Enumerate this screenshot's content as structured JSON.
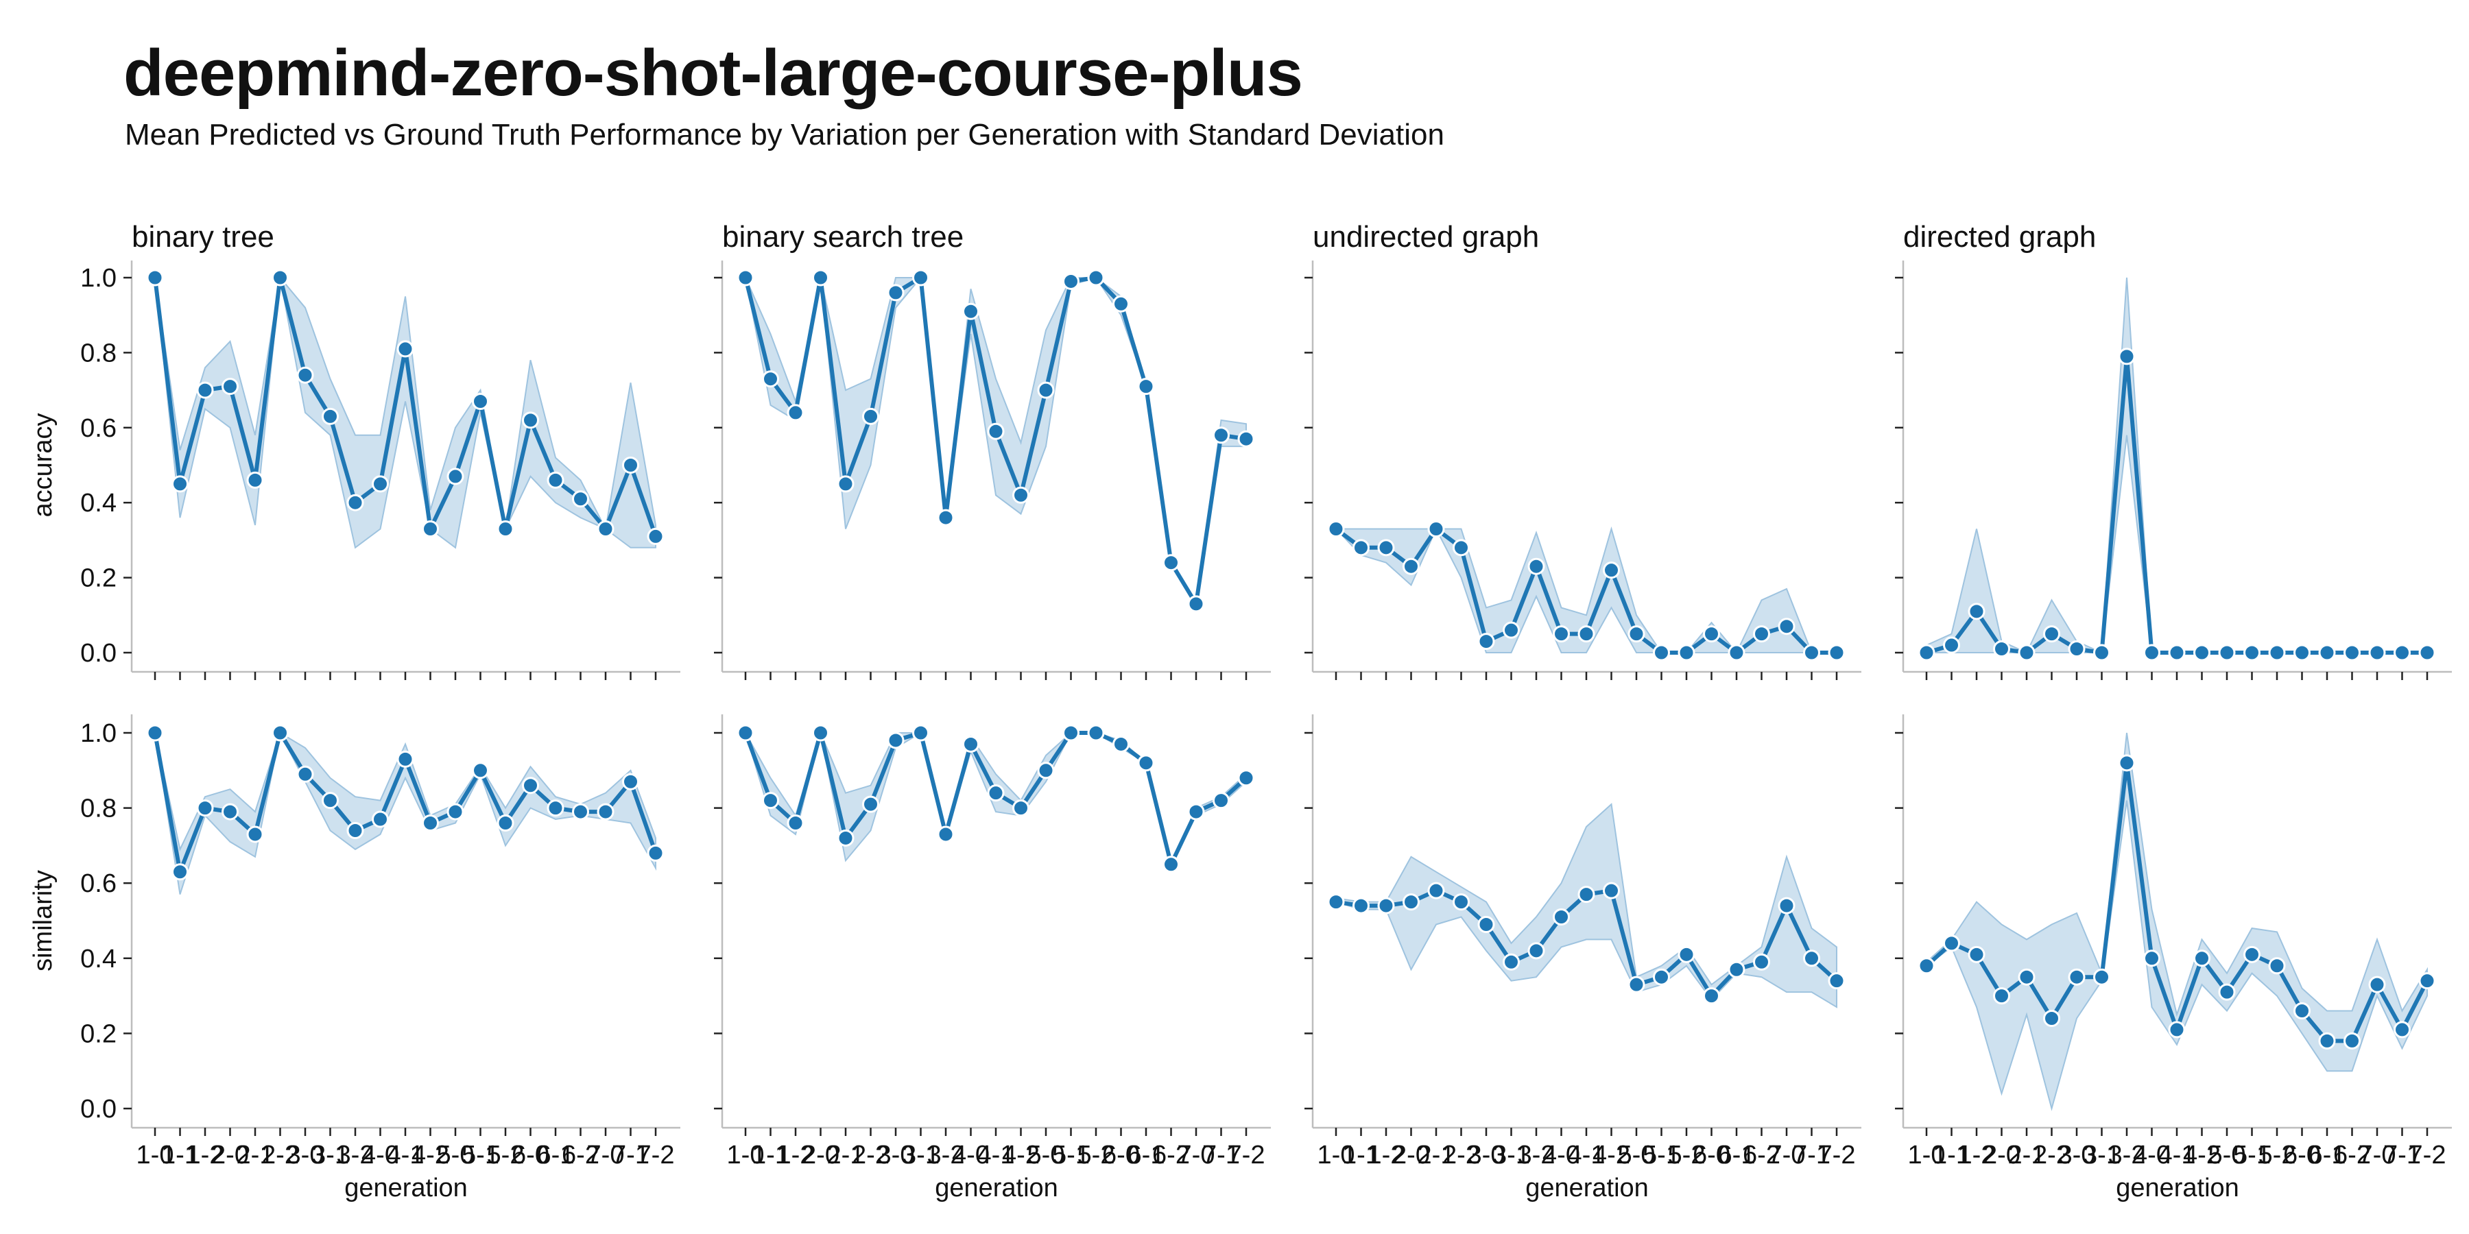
{
  "title": "deepmind-zero-shot-large-course-plus",
  "subtitle": "Mean Predicted vs Ground Truth Performance by Variation per Generation with Standard Deviation",
  "colors": {
    "line": "#1f77b4",
    "band": "#9ec3df",
    "marker_edge": "#ffffff",
    "axis": "#bdbdbd"
  },
  "chart_data": {
    "type": "line",
    "layout": "facet-grid 2x4",
    "columns": [
      "binary tree",
      "binary search tree",
      "undirected graph",
      "directed graph"
    ],
    "rows": [
      "accuracy",
      "similarity"
    ],
    "xlabel": "generation",
    "x": [
      "1-0",
      "1-1",
      "1-2",
      "2-0",
      "2-1",
      "2-2",
      "3-0",
      "3-1",
      "3-2",
      "4-0",
      "4-1",
      "4-2",
      "5-0",
      "5-1",
      "5-2",
      "6-0",
      "6-1",
      "6-2",
      "7-0",
      "7-1",
      "7-2"
    ],
    "ylim": [
      0,
      1
    ],
    "yticks": [
      0.0,
      0.2,
      0.4,
      0.6,
      0.8,
      1.0
    ],
    "ytick_labels": [
      "0.0",
      "0.2",
      "0.4",
      "0.6",
      "0.8",
      "1.0"
    ],
    "shared_y": true,
    "grid": false,
    "series": [
      {
        "row": "accuracy",
        "column": "binary tree",
        "values": [
          1.0,
          0.45,
          0.7,
          0.71,
          0.46,
          1.0,
          0.74,
          0.63,
          0.4,
          0.45,
          0.81,
          0.33,
          0.47,
          0.67,
          0.33,
          0.62,
          0.46,
          0.41,
          0.33,
          0.5,
          0.31
        ],
        "lower": [
          1.0,
          0.36,
          0.65,
          0.6,
          0.34,
          1.0,
          0.64,
          0.58,
          0.28,
          0.33,
          0.67,
          0.33,
          0.28,
          0.64,
          0.33,
          0.47,
          0.4,
          0.36,
          0.33,
          0.28,
          0.28
        ],
        "upper": [
          1.0,
          0.54,
          0.76,
          0.83,
          0.58,
          1.0,
          0.92,
          0.73,
          0.58,
          0.58,
          0.95,
          0.38,
          0.6,
          0.7,
          0.33,
          0.78,
          0.52,
          0.46,
          0.33,
          0.72,
          0.34
        ]
      },
      {
        "row": "accuracy",
        "column": "binary search tree",
        "values": [
          1.0,
          0.73,
          0.64,
          1.0,
          0.45,
          0.63,
          0.96,
          1.0,
          0.36,
          0.91,
          0.59,
          0.42,
          0.7,
          0.99,
          1.0,
          0.93,
          0.71,
          0.24,
          0.13,
          0.58,
          0.57
        ],
        "lower": [
          1.0,
          0.66,
          0.62,
          1.0,
          0.33,
          0.5,
          0.92,
          1.0,
          0.36,
          0.85,
          0.42,
          0.37,
          0.55,
          0.98,
          1.0,
          0.9,
          0.71,
          0.24,
          0.13,
          0.55,
          0.55
        ],
        "upper": [
          1.0,
          0.85,
          0.67,
          1.0,
          0.7,
          0.73,
          1.0,
          1.0,
          0.36,
          0.97,
          0.73,
          0.56,
          0.86,
          1.0,
          1.0,
          0.95,
          0.71,
          0.24,
          0.13,
          0.62,
          0.61
        ]
      },
      {
        "row": "accuracy",
        "column": "undirected graph",
        "values": [
          0.33,
          0.28,
          0.28,
          0.23,
          0.33,
          0.28,
          0.03,
          0.06,
          0.23,
          0.05,
          0.05,
          0.22,
          0.05,
          0.0,
          0.0,
          0.05,
          0.0,
          0.05,
          0.07,
          0.0,
          0.0
        ],
        "lower": [
          0.33,
          0.26,
          0.24,
          0.18,
          0.33,
          0.2,
          0.0,
          0.0,
          0.15,
          0.0,
          0.0,
          0.12,
          0.0,
          0.0,
          0.0,
          0.0,
          0.0,
          0.0,
          0.0,
          0.0,
          0.0
        ],
        "upper": [
          0.33,
          0.33,
          0.33,
          0.33,
          0.33,
          0.33,
          0.12,
          0.14,
          0.32,
          0.12,
          0.1,
          0.33,
          0.1,
          0.0,
          0.0,
          0.08,
          0.0,
          0.14,
          0.17,
          0.0,
          0.0
        ]
      },
      {
        "row": "accuracy",
        "column": "directed graph",
        "values": [
          0.0,
          0.02,
          0.11,
          0.01,
          0.0,
          0.05,
          0.01,
          0.0,
          0.79,
          0.0,
          0.0,
          0.0,
          0.0,
          0.0,
          0.0,
          0.0,
          0.0,
          0.0,
          0.0,
          0.0,
          0.0
        ],
        "lower": [
          0.0,
          0.0,
          0.0,
          0.0,
          0.0,
          0.0,
          0.0,
          0.0,
          0.58,
          0.0,
          0.0,
          0.0,
          0.0,
          0.0,
          0.0,
          0.0,
          0.0,
          0.0,
          0.0,
          0.0,
          0.0
        ],
        "upper": [
          0.02,
          0.05,
          0.33,
          0.03,
          0.0,
          0.14,
          0.03,
          0.0,
          1.0,
          0.0,
          0.0,
          0.0,
          0.0,
          0.0,
          0.0,
          0.0,
          0.0,
          0.0,
          0.0,
          0.0,
          0.0
        ]
      },
      {
        "row": "similarity",
        "column": "binary tree",
        "values": [
          1.0,
          0.63,
          0.8,
          0.79,
          0.73,
          1.0,
          0.89,
          0.82,
          0.74,
          0.77,
          0.93,
          0.76,
          0.79,
          0.9,
          0.76,
          0.86,
          0.8,
          0.79,
          0.79,
          0.87,
          0.68
        ],
        "lower": [
          1.0,
          0.57,
          0.78,
          0.71,
          0.67,
          1.0,
          0.87,
          0.74,
          0.69,
          0.73,
          0.88,
          0.74,
          0.76,
          0.89,
          0.7,
          0.8,
          0.77,
          0.78,
          0.77,
          0.76,
          0.64
        ],
        "upper": [
          1.0,
          0.69,
          0.83,
          0.85,
          0.79,
          1.0,
          0.96,
          0.88,
          0.83,
          0.82,
          0.97,
          0.78,
          0.81,
          0.91,
          0.8,
          0.91,
          0.83,
          0.81,
          0.84,
          0.9,
          0.72
        ]
      },
      {
        "row": "similarity",
        "column": "binary search tree",
        "values": [
          1.0,
          0.82,
          0.76,
          1.0,
          0.72,
          0.81,
          0.98,
          1.0,
          0.73,
          0.97,
          0.84,
          0.8,
          0.9,
          1.0,
          1.0,
          0.97,
          0.92,
          0.65,
          0.79,
          0.82,
          0.88
        ],
        "lower": [
          1.0,
          0.78,
          0.73,
          1.0,
          0.66,
          0.74,
          0.96,
          1.0,
          0.73,
          0.95,
          0.79,
          0.78,
          0.87,
          1.0,
          1.0,
          0.96,
          0.92,
          0.65,
          0.78,
          0.81,
          0.87
        ],
        "upper": [
          1.0,
          0.88,
          0.78,
          1.0,
          0.84,
          0.86,
          1.0,
          1.0,
          0.73,
          0.99,
          0.89,
          0.82,
          0.94,
          1.0,
          1.0,
          0.98,
          0.92,
          0.65,
          0.8,
          0.83,
          0.89
        ]
      },
      {
        "row": "similarity",
        "column": "undirected graph",
        "values": [
          0.55,
          0.54,
          0.54,
          0.55,
          0.58,
          0.55,
          0.49,
          0.39,
          0.42,
          0.51,
          0.57,
          0.58,
          0.33,
          0.35,
          0.41,
          0.3,
          0.37,
          0.39,
          0.54,
          0.4,
          0.34
        ],
        "lower": [
          0.55,
          0.53,
          0.53,
          0.37,
          0.49,
          0.51,
          0.42,
          0.34,
          0.35,
          0.43,
          0.45,
          0.45,
          0.31,
          0.33,
          0.38,
          0.29,
          0.36,
          0.35,
          0.31,
          0.31,
          0.27
        ],
        "upper": [
          0.56,
          0.55,
          0.55,
          0.67,
          0.63,
          0.59,
          0.55,
          0.44,
          0.51,
          0.6,
          0.75,
          0.81,
          0.35,
          0.38,
          0.43,
          0.33,
          0.38,
          0.43,
          0.67,
          0.48,
          0.43
        ]
      },
      {
        "row": "similarity",
        "column": "directed graph",
        "values": [
          0.38,
          0.44,
          0.41,
          0.3,
          0.35,
          0.24,
          0.35,
          0.35,
          0.92,
          0.4,
          0.21,
          0.4,
          0.31,
          0.41,
          0.38,
          0.26,
          0.18,
          0.18,
          0.33,
          0.21,
          0.34
        ],
        "lower": [
          0.38,
          0.43,
          0.27,
          0.04,
          0.25,
          0.0,
          0.24,
          0.34,
          0.82,
          0.27,
          0.17,
          0.33,
          0.26,
          0.36,
          0.3,
          0.2,
          0.1,
          0.1,
          0.3,
          0.16,
          0.3
        ],
        "upper": [
          0.39,
          0.45,
          0.55,
          0.49,
          0.45,
          0.49,
          0.52,
          0.36,
          1.0,
          0.53,
          0.25,
          0.45,
          0.36,
          0.48,
          0.47,
          0.32,
          0.26,
          0.26,
          0.45,
          0.26,
          0.37
        ]
      }
    ]
  }
}
